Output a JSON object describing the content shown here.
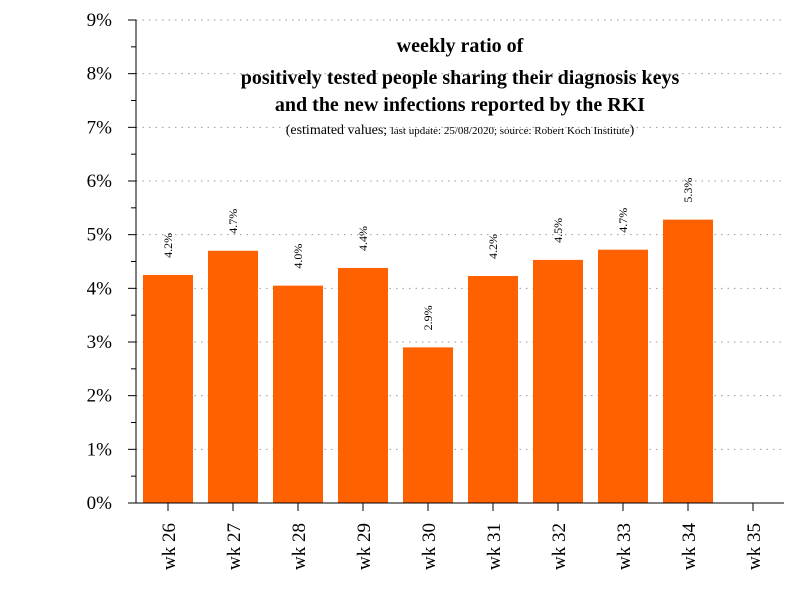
{
  "chart_data": {
    "type": "bar",
    "title_lines": [
      "weekly ratio of",
      "positively tested people sharing their diagnosis keys",
      "and the new infections reported by the RKI"
    ],
    "subtitle": {
      "open": "(estimated values; ",
      "small": "last update: 25/08/2020; source: Robert Koch Institute",
      "close": ")"
    },
    "categories": [
      "wk 26",
      "wk 27",
      "wk 28",
      "wk 29",
      "wk 30",
      "wk 31",
      "wk 32",
      "wk 33",
      "wk 34",
      "wk 35"
    ],
    "values": [
      4.25,
      4.7,
      4.05,
      4.38,
      2.9,
      4.23,
      4.53,
      4.72,
      5.28,
      null
    ],
    "value_labels": [
      "4.2%",
      "4.7%",
      "4.0%",
      "4.4%",
      "2.9%",
      "4.2%",
      "4.5%",
      "4.7%",
      "5.3%",
      ""
    ],
    "ylim": [
      0,
      9
    ],
    "yticks": [
      0,
      1,
      2,
      3,
      4,
      5,
      6,
      7,
      8,
      9
    ],
    "ytick_labels": [
      "0%",
      "1%",
      "2%",
      "3%",
      "4%",
      "5%",
      "6%",
      "7%",
      "8%",
      "9%"
    ],
    "xlabel": "",
    "ylabel": "",
    "bar_color": "#ff6000",
    "grid": "horizontal dotted"
  }
}
